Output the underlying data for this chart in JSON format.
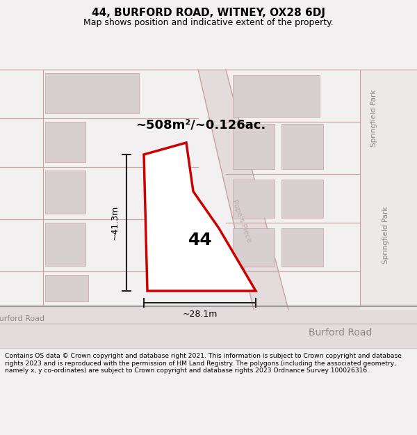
{
  "title": "44, BURFORD ROAD, WITNEY, OX28 6DJ",
  "subtitle": "Map shows position and indicative extent of the property.",
  "area_label": "~508m²/~0.126ac.",
  "number_label": "44",
  "dim_vertical": "~41.3m",
  "dim_horizontal": "~28.1m",
  "road_label_left": "Burford Road",
  "road_label_bottom": "Burford Road",
  "road_label_diagonal": "Pope's Piece",
  "side_label_top": "Springfield Park",
  "side_label_bottom": "Springfield Park",
  "footer_text": "Contains OS data © Crown copyright and database right 2021. This information is subject to Crown copyright and database rights 2023 and is reproduced with the permission of HM Land Registry. The polygons (including the associated geometry, namely x, y co-ordinates) are subject to Crown copyright and database rights 2023 Ordnance Survey 100026316.",
  "bg_color": "#f2f0f0",
  "map_bg": "#ede9e9",
  "plot_fill": "#ffffff",
  "plot_stroke": "#cc0000",
  "road_color": "#c8a0a0",
  "building_color": "#d8d0d0",
  "footer_bg": "#ffffff",
  "title_fontsize": 11,
  "subtitle_fontsize": 9
}
